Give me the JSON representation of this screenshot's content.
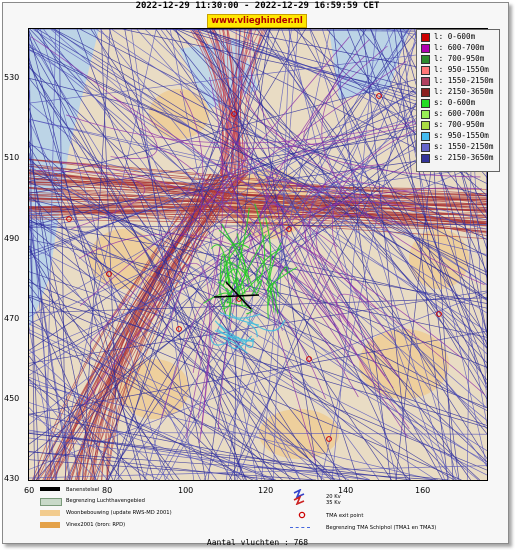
{
  "header": {
    "title": "2022-12-29 11:30:00 - 2022-12-29 16:59:59 CET",
    "brand": "www.vlieghinder.nl"
  },
  "axes": {
    "y_ticks": [
      "530",
      "510",
      "490",
      "470",
      "450",
      "430"
    ],
    "x_ticks": [
      "60",
      "80",
      "100",
      "120",
      "140",
      "160"
    ]
  },
  "legend": {
    "items": [
      {
        "label": "l: 0-600m",
        "color": "#cc0000"
      },
      {
        "label": "l: 600-700m",
        "color": "#b000b0"
      },
      {
        "label": "l: 700-950m",
        "color": "#2d8a2d"
      },
      {
        "label": "l: 950-1550m",
        "color": "#ff7777"
      },
      {
        "label": "l: 1550-2150m",
        "color": "#b04060"
      },
      {
        "label": "l: 2150-3650m",
        "color": "#8b2020"
      },
      {
        "label": "s: 0-600m",
        "color": "#22dd22"
      },
      {
        "label": "s: 600-700m",
        "color": "#99ee55"
      },
      {
        "label": "s: 700-950m",
        "color": "#aadd44"
      },
      {
        "label": "s: 950-1550m",
        "color": "#44bbee"
      },
      {
        "label": "s: 1550-2150m",
        "color": "#6666cc"
      },
      {
        "label": "s: 2150-3650m",
        "color": "#333399"
      }
    ]
  },
  "map_legend": {
    "banenstelsel": "Banenstelsel",
    "luchthaven": "Begrenzing Luchthavengebied",
    "woonbebouwing": "Woonbebouwing (update RWS-MD 2001)",
    "vinex": "Vinex2001 (bron: RPD)",
    "kv_top": "20 Kv",
    "kv_bottom": "35 Kv",
    "tma_exit": "TMA exit point",
    "tma_border": "Begrenzing TMA Schiphol  (TMA1 en TMA3)"
  },
  "footer": {
    "count_text": "Aantal vluchten : 768"
  },
  "colors": {
    "map_bg": "#e9dcc4",
    "water": "#b9d3e6",
    "blue_tracks": "#3333aa",
    "red_tracks": "#a03030"
  }
}
